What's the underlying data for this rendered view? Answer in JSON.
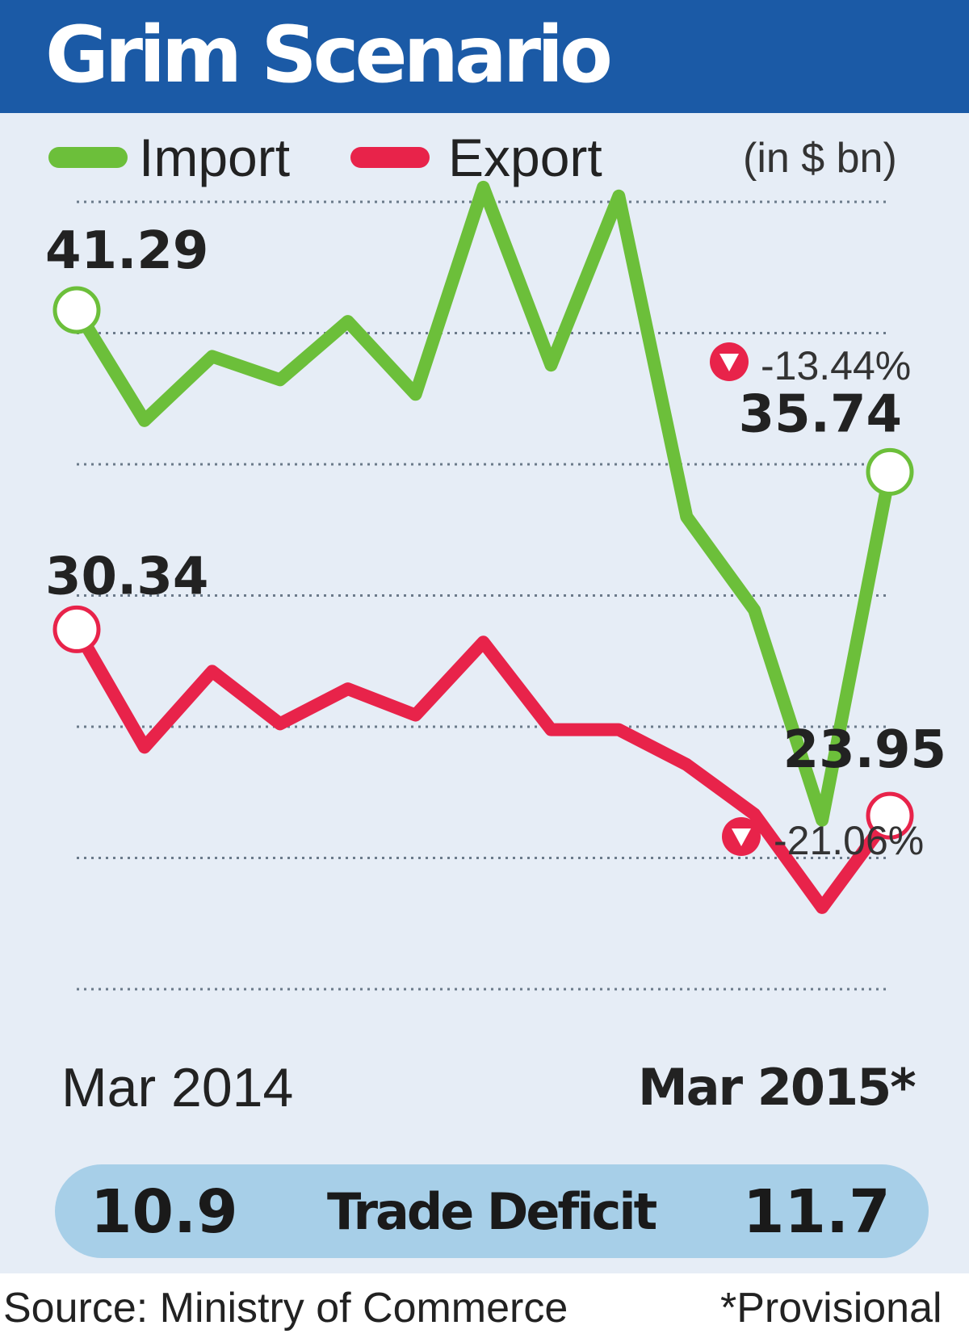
{
  "title": "Grim Scenario",
  "legend": {
    "import_label": "Import",
    "export_label": "Export",
    "unit": "(in $ bn)"
  },
  "colors": {
    "header_bg": "#1b5aa6",
    "panel_bg": "#e6edf6",
    "import": "#6cbf3a",
    "export": "#e8234a",
    "deficit_bar": "#a7cfe8"
  },
  "chart_data": {
    "type": "line",
    "x": [
      "Mar 2014",
      "",
      "",
      "",
      "",
      "",
      "",
      "",
      "",
      "",
      "",
      "",
      "Mar 2015*"
    ],
    "ylim": [
      18,
      45
    ],
    "grid": true,
    "series": [
      {
        "name": "Import",
        "values": [
          41.29,
          37.5,
          39.7,
          38.9,
          40.9,
          38.4,
          45.5,
          39.4,
          45.2,
          34.2,
          31.0,
          23.8,
          35.74
        ]
      },
      {
        "name": "Export",
        "values": [
          30.34,
          26.3,
          28.9,
          27.1,
          28.3,
          27.4,
          29.9,
          26.9,
          26.9,
          25.7,
          24.0,
          20.8,
          23.95
        ]
      }
    ],
    "annotations": {
      "import_start": "41.29",
      "import_end": "35.74",
      "import_change": "-13.44%",
      "export_start": "30.34",
      "export_end": "23.95",
      "export_change": "-21.06%"
    },
    "xlabel_start": "Mar 2014",
    "xlabel_end": "Mar 2015*"
  },
  "trade_deficit": {
    "start_value": "10.9",
    "label": "Trade Deficit",
    "end_value": "11.7"
  },
  "footer": {
    "source": "Source: Ministry of Commerce",
    "note": "*Provisional"
  }
}
